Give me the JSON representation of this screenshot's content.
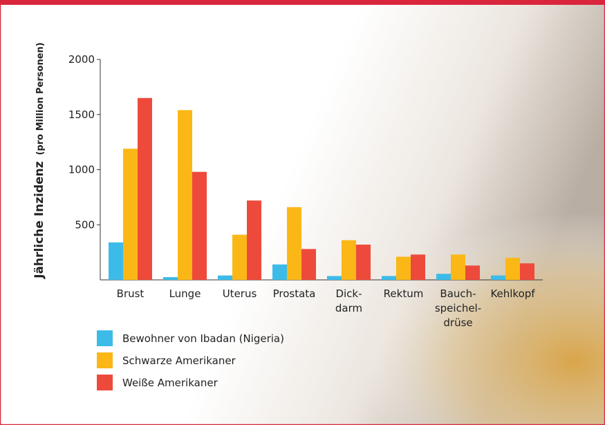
{
  "chart_data": {
    "type": "bar",
    "ylabel": "Jährliche Inzidenz",
    "ylabel_unit": "(pro Million Personen)",
    "categories": [
      "Brust",
      "Lunge",
      "Uterus",
      "Prostata",
      "Dick-\ndarm",
      "Rektum",
      "Bauch-\nspeichel-\ndrüse",
      "Kehlkopf"
    ],
    "series": [
      {
        "name": "Bewohner von Ibadan (Nigeria)",
        "color": "#3dbbe8",
        "values": [
          340,
          25,
          40,
          140,
          35,
          35,
          55,
          40
        ]
      },
      {
        "name": "Schwarze Amerikaner",
        "color": "#fbb716",
        "values": [
          1190,
          1540,
          410,
          660,
          360,
          210,
          230,
          200
        ]
      },
      {
        "name": "Weiße Amerikaner",
        "color": "#ee4a3c",
        "values": [
          1650,
          980,
          720,
          280,
          320,
          230,
          130,
          150
        ]
      }
    ],
    "ylim": [
      0,
      2000
    ],
    "yticks": [
      500,
      1000,
      1500,
      2000
    ]
  }
}
